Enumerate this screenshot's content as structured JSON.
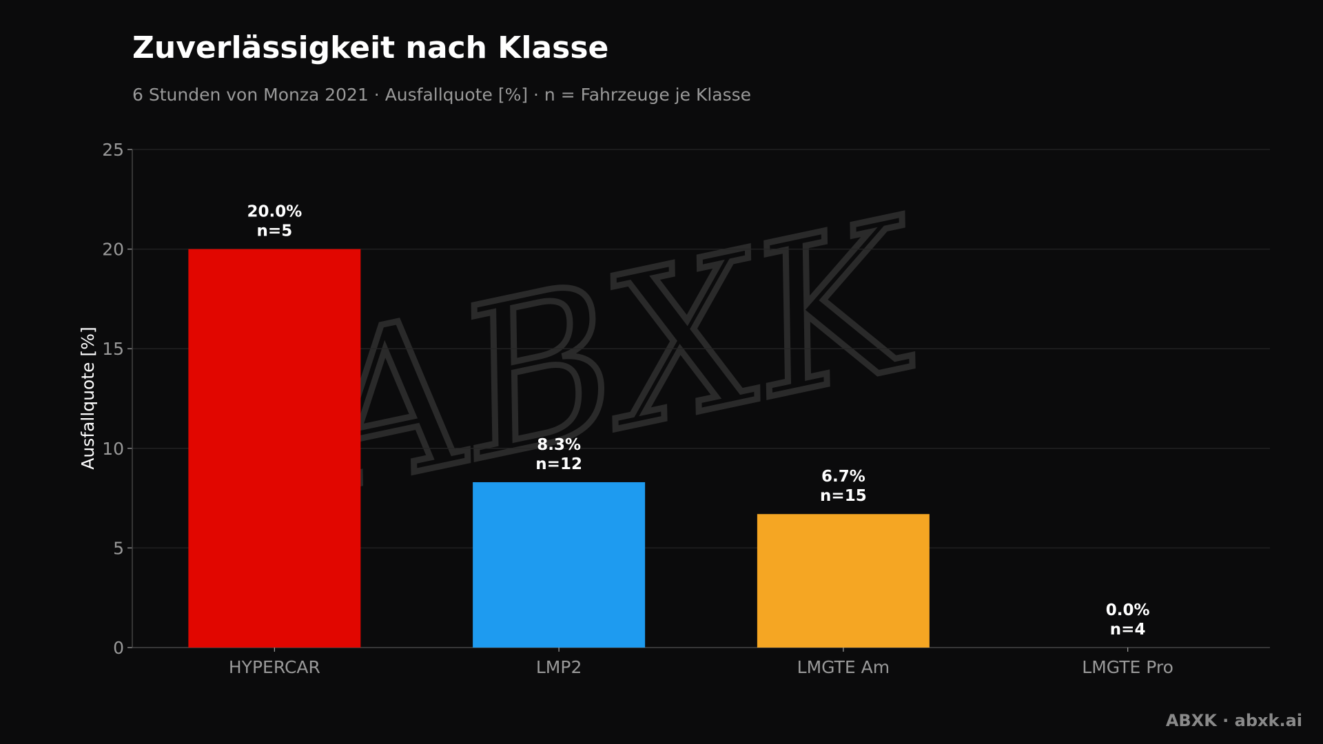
{
  "header": {
    "title": "Zuverlässigkeit nach Klasse",
    "subtitle": "6 Stunden von Monza 2021 · Ausfallquote [%] · n = Fahrzeuge je Klasse"
  },
  "footer": {
    "brand": "ABXK · abxk.ai"
  },
  "watermark": {
    "text": "ABXK"
  },
  "colors": {
    "background": "#0b0b0c",
    "grid": "#252525",
    "axis": "#444444",
    "text": "#ffffff",
    "muted": "#9a9a9a"
  },
  "chart_data": {
    "type": "bar",
    "title": "Zuverlässigkeit nach Klasse",
    "subtitle": "6 Stunden von Monza 2021 · Ausfallquote [%] · n = Fahrzeuge je Klasse",
    "xlabel": "",
    "ylabel": "Ausfallquote [%]",
    "ylim": [
      0,
      25
    ],
    "yticks": [
      0,
      5,
      10,
      15,
      20,
      25
    ],
    "grid": true,
    "categories": [
      "HYPERCAR",
      "LMP2",
      "LMGTE Am",
      "LMGTE Pro"
    ],
    "values": [
      20.0,
      8.3,
      6.7,
      0.0
    ],
    "value_labels": [
      "20.0%",
      "8.3%",
      "6.7%",
      "0.0%"
    ],
    "n_labels": [
      "n=5",
      "n=12",
      "n=15",
      "n=4"
    ],
    "bar_colors": [
      "#e10600",
      "#1e9bf0",
      "#f5a623",
      "#c8c8c8"
    ]
  }
}
